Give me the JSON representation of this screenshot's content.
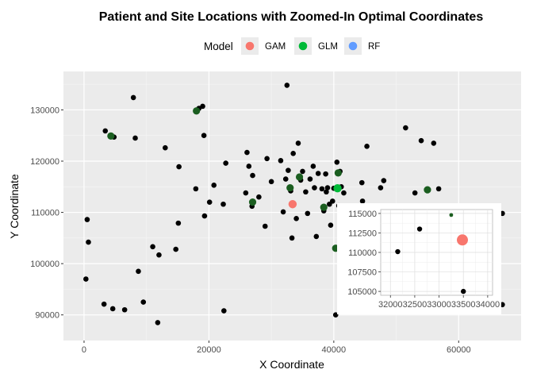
{
  "chart_data": {
    "type": "scatter",
    "title": "Patient and Site Locations with Zoomed-In Optimal Coordinates",
    "xlabel": "X Coordinate",
    "ylabel": "Y Coordinate",
    "xlim": [
      -3300,
      70000
    ],
    "ylim": [
      85000,
      137500
    ],
    "xticks": [
      0,
      20000,
      40000,
      60000
    ],
    "yticks": [
      90000,
      100000,
      110000,
      120000,
      130000
    ],
    "grid": true,
    "legend": {
      "title": "Model",
      "position": "top",
      "entries": [
        {
          "name": "GAM",
          "color": "#F8766D"
        },
        {
          "name": "GLM",
          "color": "#00BA38"
        },
        {
          "name": "RF",
          "color": "#619CFF"
        }
      ]
    },
    "patients": [
      [
        300,
        97000
      ],
      [
        500,
        108600
      ],
      [
        700,
        104200
      ],
      [
        3200,
        92100
      ],
      [
        3400,
        125900
      ],
      [
        4300,
        124800
      ],
      [
        4600,
        91200
      ],
      [
        4800,
        124700
      ],
      [
        6500,
        91000
      ],
      [
        7900,
        132400
      ],
      [
        8200,
        124500
      ],
      [
        8700,
        98500
      ],
      [
        9500,
        92500
      ],
      [
        11000,
        103300
      ],
      [
        11800,
        88500
      ],
      [
        12000,
        101700
      ],
      [
        13000,
        122600
      ],
      [
        14700,
        102800
      ],
      [
        15100,
        107900
      ],
      [
        15200,
        118900
      ],
      [
        17900,
        114600
      ],
      [
        18400,
        130300
      ],
      [
        19000,
        130700
      ],
      [
        19200,
        125000
      ],
      [
        19300,
        109300
      ],
      [
        20100,
        112000
      ],
      [
        20800,
        115300
      ],
      [
        22300,
        111600
      ],
      [
        22400,
        90800
      ],
      [
        22700,
        119600
      ],
      [
        25900,
        113800
      ],
      [
        26100,
        121700
      ],
      [
        26400,
        119000
      ],
      [
        26900,
        111200
      ],
      [
        27000,
        117200
      ],
      [
        28000,
        113000
      ],
      [
        29000,
        107300
      ],
      [
        29300,
        120500
      ],
      [
        30000,
        116000
      ],
      [
        31500,
        120100
      ],
      [
        31900,
        110100
      ],
      [
        32300,
        116500
      ],
      [
        32500,
        134800
      ],
      [
        32700,
        118200
      ],
      [
        33100,
        114200
      ],
      [
        33300,
        105000
      ],
      [
        33500,
        121500
      ],
      [
        34000,
        108800
      ],
      [
        34300,
        123500
      ],
      [
        34700,
        116300
      ],
      [
        35000,
        118000
      ],
      [
        35500,
        114000
      ],
      [
        35800,
        109800
      ],
      [
        36200,
        116500
      ],
      [
        36700,
        119000
      ],
      [
        36900,
        114800
      ],
      [
        37200,
        105300
      ],
      [
        37500,
        117600
      ],
      [
        38100,
        114600
      ],
      [
        38400,
        110300
      ],
      [
        38700,
        117500
      ],
      [
        38800,
        114000
      ],
      [
        39000,
        114800
      ],
      [
        39300,
        111600
      ],
      [
        39500,
        107500
      ],
      [
        39800,
        112200
      ],
      [
        40000,
        114700
      ],
      [
        40300,
        90000
      ],
      [
        40500,
        119800
      ],
      [
        40800,
        111300
      ],
      [
        41000,
        118000
      ],
      [
        41200,
        115000
      ],
      [
        41600,
        113800
      ],
      [
        42300,
        105200
      ],
      [
        44500,
        115800
      ],
      [
        44600,
        112200
      ],
      [
        45300,
        122900
      ],
      [
        47500,
        114800
      ],
      [
        48000,
        116200
      ],
      [
        51500,
        126500
      ],
      [
        53000,
        113800
      ],
      [
        54000,
        124000
      ],
      [
        56000,
        123500
      ],
      [
        56800,
        114600
      ],
      [
        67000,
        92000
      ],
      [
        67000,
        109800
      ]
    ],
    "sites": [
      [
        4300,
        124900
      ],
      [
        18000,
        129800
      ],
      [
        27000,
        112000
      ],
      [
        33000,
        114800
      ],
      [
        34500,
        116900
      ],
      [
        38400,
        111000
      ],
      [
        40300,
        103000
      ],
      [
        40700,
        117700
      ],
      [
        55000,
        114400
      ]
    ],
    "optimal": [
      {
        "model": "GAM",
        "x": 33400,
        "y": 111600,
        "color": "#F8766D"
      },
      {
        "model": "GLM",
        "x": 40600,
        "y": 114700,
        "color": "#00BA38"
      }
    ],
    "inset": {
      "xlim": [
        31800,
        34100
      ],
      "ylim": [
        104500,
        115500
      ],
      "xticks": [
        32000,
        32500,
        33000,
        33500,
        34000
      ],
      "yticks": [
        105000,
        107500,
        110000,
        112500,
        115000
      ],
      "xtick_labels": [
        "32000",
        "32500",
        "33000",
        "33500",
        "34000"
      ],
      "ytick_labels": [
        "105000",
        "107500",
        "110000",
        "112500",
        "115000"
      ],
      "patients": [
        [
          32150,
          110100
        ],
        [
          32600,
          113000
        ],
        [
          33500,
          105000
        ]
      ],
      "sites": [
        [
          33250,
          114800
        ]
      ],
      "optimal": [
        {
          "model": "GAM",
          "x": 33480,
          "y": 111600,
          "color": "#F8766D"
        }
      ]
    }
  }
}
